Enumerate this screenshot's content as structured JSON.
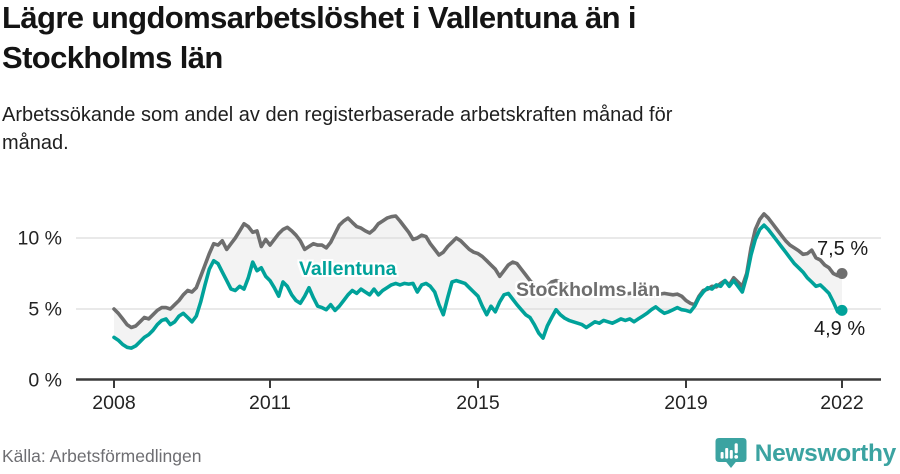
{
  "header": {
    "title": "Lägre ungdomsarbetslöshet i Vallentuna än i Stockholms län",
    "subtitle": "Arbetssökande som andel av den registerbaserade arbetskraften månad för månad."
  },
  "footer": {
    "source": "Källa: Arbetsförmedlingen",
    "brand": "Newsworthy",
    "brand_icon": "bar-chart-speech-bubble-icon",
    "brand_color": "#3ba3a1"
  },
  "chart_data": {
    "type": "line",
    "title": "Lägre ungdomsarbetslöshet i Vallentuna än i Stockholms län",
    "subtitle": "Arbetssökande som andel av den registerbaserade arbetskraften månad för månad.",
    "unit": "%",
    "frequency": "monthly",
    "start_month": "2008-01",
    "end_month": "2022-01",
    "grid": "horizontal",
    "legend_position": "inline-labels",
    "band_fill_between_series": true,
    "band_fill_color": "#f3f3f3",
    "gridline_color": "#dcdcdc",
    "axis_color": "#3a3a3a",
    "tick_label_color": "#242424",
    "ylim": [
      0,
      12.5
    ],
    "y_ticks": [
      {
        "value": 0,
        "label": "0 %"
      },
      {
        "value": 5,
        "label": "5 %"
      },
      {
        "value": 10,
        "label": "10 %"
      }
    ],
    "x_ticks": [
      {
        "month_index": 0,
        "label": "2008"
      },
      {
        "month_index": 36,
        "label": "2011"
      },
      {
        "month_index": 84,
        "label": "2015"
      },
      {
        "month_index": 132,
        "label": "2019"
      },
      {
        "month_index": 168,
        "label": "2022"
      }
    ],
    "series": [
      {
        "name": "Stockholms län",
        "color": "#6e6e6e",
        "end_label": "7,5 %",
        "final_value": 7.5,
        "values": [
          5.0,
          4.7,
          4.3,
          3.9,
          3.7,
          3.8,
          4.1,
          4.4,
          4.3,
          4.6,
          4.9,
          5.1,
          5.1,
          5.0,
          5.3,
          5.6,
          6.0,
          6.3,
          6.2,
          6.5,
          7.3,
          8.1,
          8.9,
          9.6,
          9.5,
          9.8,
          9.2,
          9.6,
          10.0,
          10.5,
          11.0,
          10.8,
          10.4,
          10.5,
          9.4,
          9.9,
          9.5,
          9.9,
          10.3,
          10.6,
          10.75,
          10.5,
          10.2,
          9.8,
          9.2,
          9.4,
          9.6,
          9.5,
          9.5,
          9.3,
          9.7,
          10.3,
          10.9,
          11.2,
          11.4,
          11.1,
          10.8,
          10.7,
          10.5,
          10.35,
          10.6,
          11.0,
          11.2,
          11.4,
          11.5,
          11.55,
          11.2,
          10.8,
          10.4,
          9.9,
          10.0,
          10.2,
          10.1,
          9.6,
          9.2,
          8.8,
          9.0,
          9.4,
          9.7,
          10.0,
          9.8,
          9.5,
          9.2,
          9.0,
          8.9,
          8.7,
          8.4,
          8.1,
          7.8,
          7.3,
          7.7,
          8.1,
          8.3,
          8.2,
          7.8,
          7.4,
          7.0,
          6.7,
          6.5,
          6.3,
          6.6,
          6.9,
          7.0,
          6.9,
          6.75,
          6.6,
          6.5,
          6.45,
          6.4,
          6.3,
          6.25,
          6.2,
          6.15,
          6.2,
          6.3,
          6.25,
          6.15,
          6.1,
          6.05,
          6.1,
          6.15,
          6.1,
          6.0,
          5.95,
          5.9,
          5.95,
          6.05,
          6.1,
          6.05,
          6.0,
          6.05,
          5.9,
          5.6,
          5.4,
          5.3,
          5.9,
          6.3,
          6.4,
          6.6,
          6.55,
          6.8,
          7.0,
          6.7,
          7.2,
          6.9,
          6.6,
          7.5,
          9.3,
          10.6,
          11.3,
          11.7,
          11.4,
          11.0,
          10.6,
          10.2,
          9.8,
          9.5,
          9.3,
          9.1,
          8.85,
          8.9,
          9.15,
          8.6,
          8.45,
          8.1,
          7.9,
          7.5,
          7.35,
          7.5
        ]
      },
      {
        "name": "Vallentuna",
        "color": "#00a29a",
        "end_label": "4,9 %",
        "final_value": 4.9,
        "values": [
          3.0,
          2.8,
          2.5,
          2.3,
          2.25,
          2.4,
          2.7,
          3.0,
          3.2,
          3.5,
          3.9,
          4.2,
          4.3,
          3.9,
          4.1,
          4.5,
          4.7,
          4.4,
          4.1,
          4.5,
          5.5,
          6.7,
          7.8,
          8.4,
          8.2,
          7.6,
          7.0,
          6.4,
          6.3,
          6.6,
          6.4,
          7.2,
          8.3,
          7.7,
          7.9,
          7.3,
          7.0,
          6.5,
          5.9,
          6.9,
          6.6,
          6.0,
          5.6,
          5.4,
          5.9,
          6.5,
          5.8,
          5.2,
          5.1,
          4.95,
          5.3,
          4.9,
          5.2,
          5.6,
          6.0,
          6.3,
          6.1,
          6.4,
          6.2,
          6.0,
          6.4,
          6.0,
          6.3,
          6.5,
          6.7,
          6.8,
          6.7,
          6.8,
          6.75,
          6.8,
          6.2,
          6.7,
          6.8,
          6.6,
          6.2,
          5.3,
          4.6,
          5.8,
          6.9,
          7.0,
          6.9,
          6.8,
          6.5,
          6.2,
          5.9,
          5.2,
          4.6,
          5.2,
          4.8,
          5.5,
          6.0,
          6.1,
          5.7,
          5.3,
          4.95,
          4.6,
          4.4,
          3.9,
          3.3,
          2.95,
          3.8,
          4.4,
          4.95,
          4.6,
          4.35,
          4.2,
          4.1,
          4.0,
          3.9,
          3.7,
          3.9,
          4.1,
          4.0,
          4.2,
          4.1,
          4.0,
          4.15,
          4.3,
          4.2,
          4.3,
          4.1,
          4.3,
          4.5,
          4.7,
          4.95,
          5.15,
          4.9,
          4.7,
          4.8,
          4.95,
          5.1,
          4.95,
          4.9,
          4.8,
          5.2,
          5.8,
          6.2,
          6.5,
          6.4,
          6.7,
          6.6,
          7.0,
          6.6,
          7.0,
          6.6,
          6.2,
          7.3,
          8.8,
          9.9,
          10.6,
          10.9,
          10.6,
          10.2,
          9.8,
          9.4,
          9.0,
          8.6,
          8.2,
          7.9,
          7.6,
          7.2,
          6.9,
          6.6,
          6.7,
          6.4,
          6.1,
          5.5,
          4.8,
          4.9
        ]
      }
    ]
  }
}
